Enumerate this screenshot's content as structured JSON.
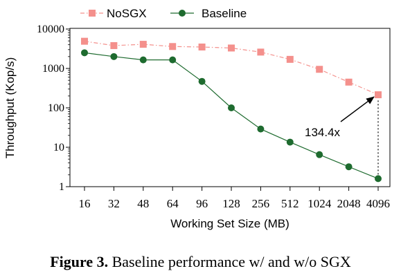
{
  "chart_data": {
    "type": "line",
    "xlabel": "Working Set Size (MB)",
    "ylabel": "Throughput (Kop/s)",
    "yscale": "log",
    "ylim": [
      1,
      10000
    ],
    "yticks": [
      "1",
      "10",
      "100",
      "1000",
      "10000"
    ],
    "categories": [
      "16",
      "32",
      "48",
      "64",
      "96",
      "128",
      "256",
      "512",
      "1024",
      "2048",
      "4096"
    ],
    "series": [
      {
        "name": "NoSGX",
        "color": "#f4908c",
        "marker": "square",
        "line": "dash-dot",
        "values": [
          4900,
          3800,
          4100,
          3600,
          3500,
          3300,
          2600,
          1700,
          950,
          450,
          215
        ]
      },
      {
        "name": "Baseline",
        "color": "#1e6b2f",
        "marker": "circle",
        "line": "solid",
        "values": [
          2500,
          2000,
          1650,
          1650,
          470,
          100,
          29,
          13.5,
          6.5,
          3.2,
          1.6
        ]
      }
    ],
    "legend": "top",
    "annotations": [
      {
        "text": "134.4x",
        "category": "4096",
        "from": 1.6,
        "to": 215
      }
    ]
  },
  "caption": {
    "label": "Figure 3.",
    "text": " Baseline performance w/ and w/o SGX"
  }
}
